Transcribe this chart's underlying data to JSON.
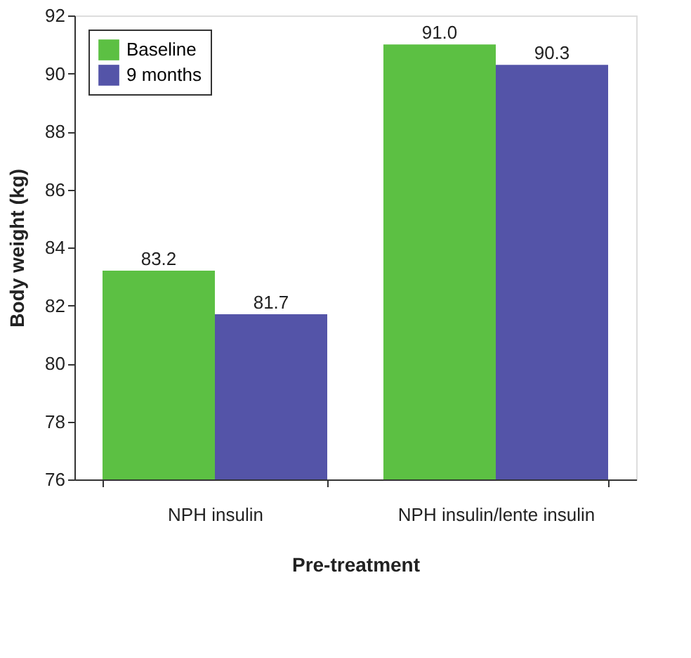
{
  "chart_data": {
    "type": "bar",
    "categories": [
      "NPH insulin",
      "NPH insulin/lente insulin"
    ],
    "series": [
      {
        "name": "Baseline",
        "color": "#5cc043",
        "values": [
          83.2,
          91.0
        ]
      },
      {
        "name": "9 months",
        "color": "#5454a8",
        "values": [
          81.7,
          90.3
        ]
      }
    ],
    "value_labels": [
      [
        "83.2",
        "91.0"
      ],
      [
        "81.7",
        "90.3"
      ]
    ],
    "xlabel": "Pre-treatment",
    "ylabel": "Body weight (kg)",
    "ylim": [
      76,
      92
    ],
    "yticks": [
      76,
      78,
      80,
      82,
      84,
      86,
      88,
      90,
      92
    ],
    "grid": false,
    "legend": "top left"
  }
}
